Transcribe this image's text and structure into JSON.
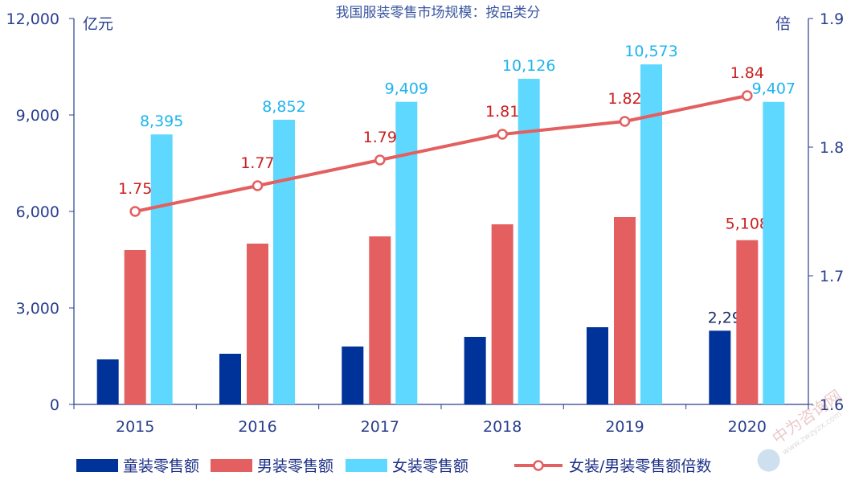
{
  "chart_data": {
    "type": "bar+line",
    "title": "我国服装零售市场规模：按品类分",
    "ylabel_left": "亿元",
    "ylabel_right": "倍",
    "categories": [
      "2015",
      "2016",
      "2017",
      "2018",
      "2019",
      "2020"
    ],
    "ylim_left": [
      0,
      12000
    ],
    "yticks_left": [
      "0",
      "3,000",
      "6,000",
      "9,000",
      "12,000"
    ],
    "ylim_right": [
      1.6,
      1.9
    ],
    "yticks_right": [
      "1.6",
      "1.7",
      "1.8",
      "1.9"
    ],
    "grid": false,
    "legend_position": "bottom",
    "series": [
      {
        "name": "童装零售额",
        "type": "bar",
        "axis": "left",
        "color": "#003399",
        "values": [
          1400,
          1575,
          1800,
          2100,
          2400,
          2292
        ],
        "labels": [
          "",
          "",
          "",
          "",
          "",
          "2,292"
        ],
        "label_color": "#1b2f6e"
      },
      {
        "name": "男装零售额",
        "type": "bar",
        "axis": "left",
        "color": "#e45f5f",
        "values": [
          4800,
          5000,
          5225,
          5600,
          5825,
          5108
        ],
        "labels": [
          "",
          "",
          "",
          "",
          "",
          "5,108"
        ],
        "label_color": "#cc1e1e"
      },
      {
        "name": "女装零售额",
        "type": "bar",
        "axis": "left",
        "color": "#5fd8ff",
        "values": [
          8395,
          8852,
          9409,
          10126,
          10573,
          9407
        ],
        "labels": [
          "8,395",
          "8,852",
          "9,409",
          "10,126",
          "10,573",
          "9,407"
        ],
        "label_color": "#1eb4f0"
      },
      {
        "name": "女装/男装零售额倍数",
        "type": "line",
        "axis": "right",
        "color": "#e45f5f",
        "values": [
          1.75,
          1.77,
          1.79,
          1.81,
          1.82,
          1.84
        ],
        "labels": [
          "1.75",
          "1.77",
          "1.79",
          "1.81",
          "1.82",
          "1.84"
        ],
        "label_color": "#cc1e1e"
      }
    ]
  },
  "watermark": {
    "text": "中为咨询网",
    "url_text": "www.zwzyzx.com"
  }
}
